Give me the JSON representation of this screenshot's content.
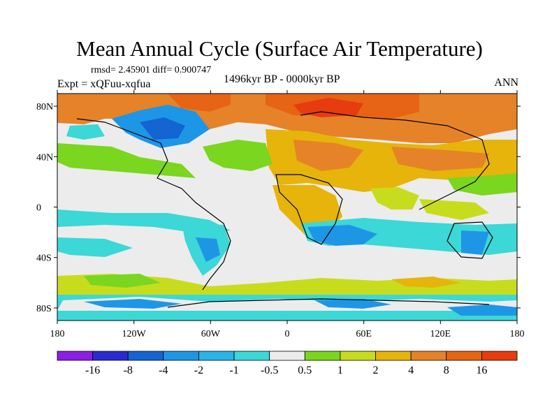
{
  "title": "Mean Annual Cycle (Surface Air Temperature)",
  "stats": "rmsd= 2.45901 diff= 0.900747",
  "period": "1496kyr BP - 0000kyr BP",
  "experiment": "Expt = xQFuu-xqfua",
  "season": "ANN",
  "map": {
    "lat_ticks": [
      "80N",
      "40N",
      "0",
      "40S",
      "80S"
    ],
    "lon_ticks": [
      "180",
      "120W",
      "60W",
      "0",
      "60E",
      "120E",
      "180"
    ],
    "lat_range": [
      -90,
      90
    ],
    "lon_range": [
      -180,
      180
    ]
  },
  "colorbar": {
    "levels": [
      "-16",
      "-8",
      "-4",
      "-2",
      "-1",
      "-0.5",
      "0.5",
      "1",
      "2",
      "4",
      "8",
      "16"
    ],
    "colors": [
      "#8c1ee6",
      "#2a2ad2",
      "#1464d2",
      "#1e96e6",
      "#28b4e8",
      "#3cd7d7",
      "#ececec",
      "#7ad61e",
      "#c8dc1e",
      "#e6b40a",
      "#e68228",
      "#e66414",
      "#e63c0f"
    ]
  }
}
